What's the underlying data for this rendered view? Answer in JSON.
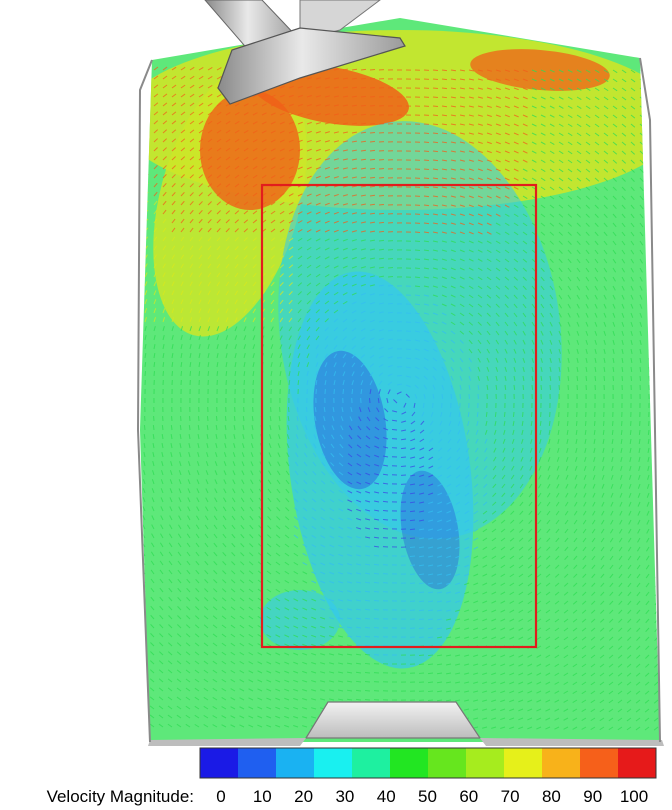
{
  "colorbar": {
    "title": "Velocity Magnitude:",
    "ticks": [
      "0",
      "10",
      "20",
      "30",
      "40",
      "50",
      "60",
      "70",
      "80",
      "90",
      "100"
    ],
    "colors": [
      "#1a1ae6",
      "#1f5ff0",
      "#1ab2f2",
      "#19f0f0",
      "#1ef0a0",
      "#22e622",
      "#66e61e",
      "#a6ec1e",
      "#e6f01a",
      "#f8b21a",
      "#f6601a",
      "#e61a1a"
    ]
  },
  "frame_color": "#e21d1d",
  "field_colors": {
    "slow": "#2233dd",
    "mid_low": "#33c8f0",
    "mid": "#38e05a",
    "mid_high": "#cde628",
    "fast": "#f06018"
  }
}
